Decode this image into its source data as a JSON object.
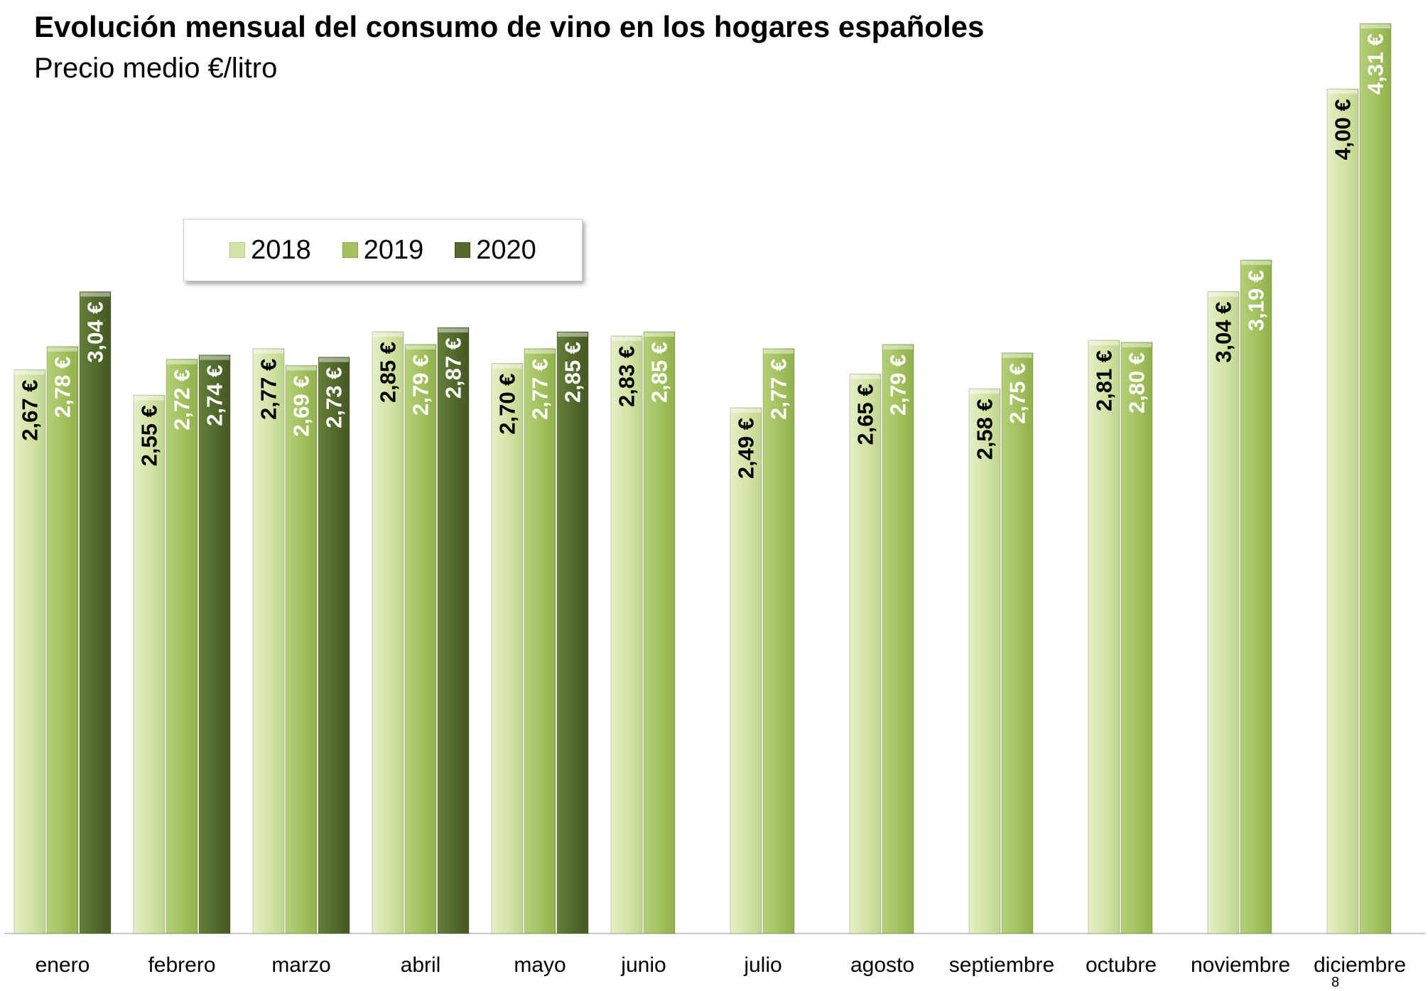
{
  "chart_data": {
    "type": "bar",
    "title": "Evolución mensual del consumo de vino en los hogares españoles",
    "subtitle": "Precio medio €/litro",
    "categories": [
      "enero",
      "febrero",
      "marzo",
      "abril",
      "mayo",
      "junio",
      "julio",
      "agosto",
      "septiembre",
      "octubre",
      "noviembre",
      "diciembre"
    ],
    "series": [
      {
        "name": "2018",
        "color": "#d4e4a6",
        "label_color": "#000000",
        "values": [
          2.67,
          2.55,
          2.77,
          2.85,
          2.7,
          2.83,
          2.49,
          2.65,
          2.58,
          2.81,
          3.04,
          4.0
        ],
        "labels": [
          "2,67 €",
          "2,55 €",
          "2,77 €",
          "2,85 €",
          "2,70 €",
          "2,83 €",
          "2,49 €",
          "2,65 €",
          "2,58 €",
          "2,81 €",
          "3,04 €",
          "4,00 €"
        ]
      },
      {
        "name": "2019",
        "color": "#a3c25f",
        "label_color": "#ffffff",
        "values": [
          2.78,
          2.72,
          2.69,
          2.79,
          2.77,
          2.85,
          2.77,
          2.79,
          2.75,
          2.8,
          3.19,
          4.31
        ],
        "labels": [
          "2,78 €",
          "2,72 €",
          "2,69 €",
          "2,79 €",
          "2,77 €",
          "2,85 €",
          "2,77 €",
          "2,79 €",
          "2,75 €",
          "2,80 €",
          "3,19 €",
          "4,31 €"
        ]
      },
      {
        "name": "2020",
        "color": "#536a2c",
        "label_color": "#ffffff",
        "values": [
          3.04,
          2.74,
          2.73,
          2.87,
          2.85,
          null,
          null,
          null,
          null,
          null,
          null,
          null
        ],
        "labels": [
          "3,04 €",
          "2,74 €",
          "2,73 €",
          "2,87 €",
          "2,85 €",
          "",
          "",
          "",
          "",
          "",
          "",
          ""
        ]
      }
    ],
    "legend_position": "top-left",
    "grid": false
  },
  "page_number": "8"
}
